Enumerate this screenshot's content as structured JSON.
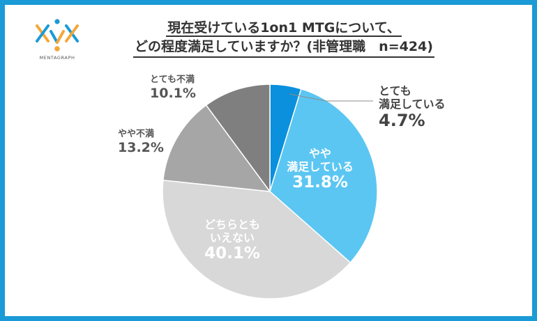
{
  "logo": {
    "text": "MENTAGRAPH",
    "icon": "mentagraph-logo-icon"
  },
  "title": {
    "line1": "現在受けている1on1 MTGについて、",
    "line2": "どの程度満足していますか？(非管理職　n=424)"
  },
  "colors": {
    "border": "#1a9ad6",
    "very_satisfied": "#0a90dc",
    "somewhat_satisfied": "#5cc6f2",
    "neutral": "#d8d8d8",
    "somewhat_dissatisfied": "#a6a6a6",
    "very_dissatisfied": "#7f7f7f"
  },
  "chart_data": {
    "type": "pie",
    "start_angle_deg": 0,
    "direction": "clockwise",
    "slices": [
      {
        "name": "とても満足している",
        "value": 4.7,
        "label": "4.7%",
        "color": "#0a90dc"
      },
      {
        "name": "やや満足している",
        "value": 31.8,
        "label": "31.8%",
        "color": "#5cc6f2"
      },
      {
        "name": "どちらともいえない",
        "value": 40.1,
        "label": "40.1%",
        "color": "#d8d8d8"
      },
      {
        "name": "やや不満",
        "value": 13.2,
        "label": "13.2%",
        "color": "#a6a6a6"
      },
      {
        "name": "とても不満",
        "value": 10.1,
        "label": "10.1%",
        "color": "#7f7f7f"
      }
    ],
    "labels": {
      "very_satisfied": {
        "name_line1": "とても",
        "name_line2": "満足している",
        "pct": "4.7%"
      },
      "somewhat_satisfied": {
        "name_line1": "やや",
        "name_line2": "満足している",
        "pct": "31.8%"
      },
      "neutral": {
        "name_line1": "どちらとも",
        "name_line2": "いえない",
        "pct": "40.1%"
      },
      "somewhat_dissatisfied": {
        "name_line1": "やや不満",
        "pct": "13.2%"
      },
      "very_dissatisfied": {
        "name_line1": "とても不満",
        "pct": "10.1%"
      }
    }
  }
}
